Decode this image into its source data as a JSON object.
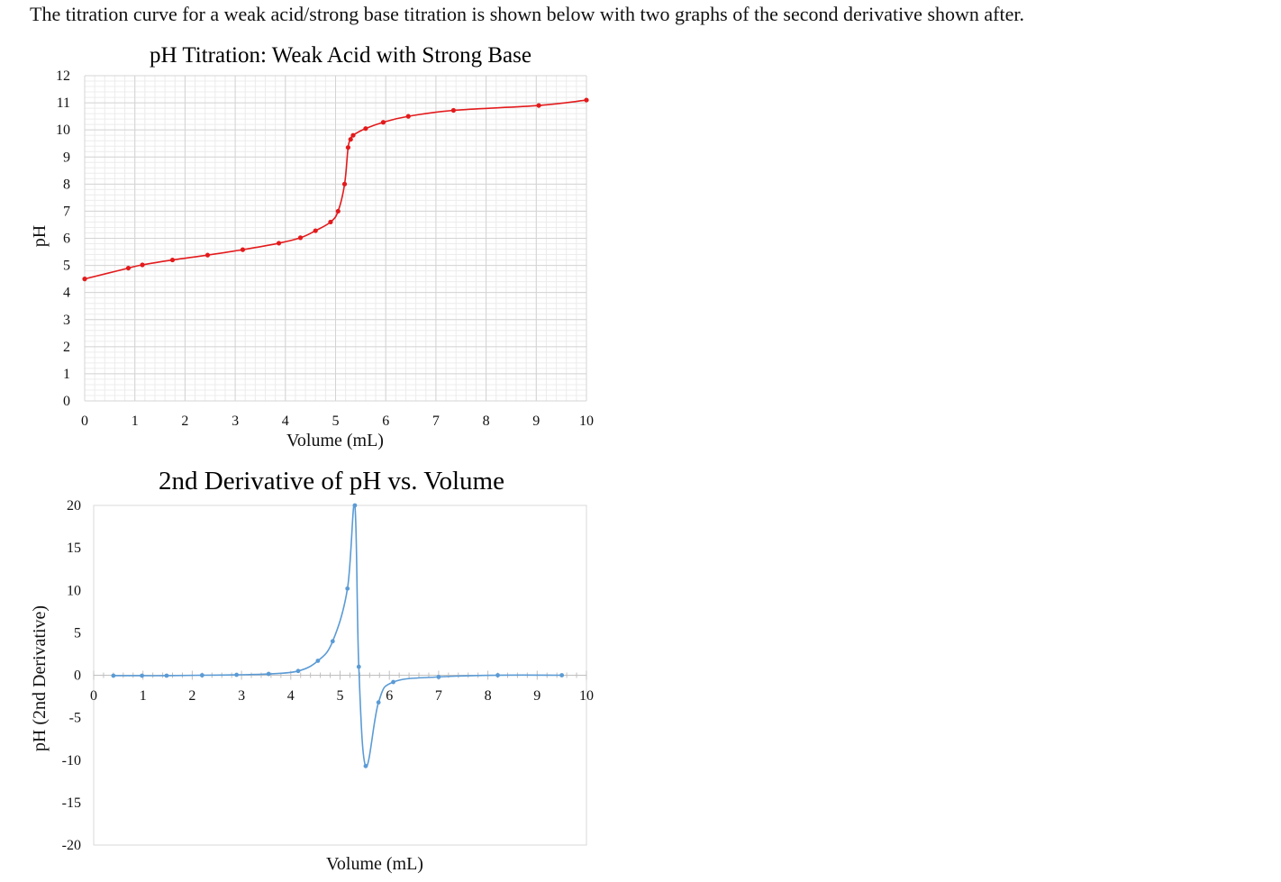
{
  "intro_text": "The titration curve for a weak acid/strong base titration is shown below with two graphs of the second derivative shown after.",
  "chart_data": [
    {
      "type": "line",
      "title": "pH Titration: Weak Acid with Strong Base",
      "xlabel": "Volume (mL)",
      "ylabel": "pH",
      "xlim": [
        0,
        10
      ],
      "ylim": [
        0,
        12
      ],
      "x_ticks": [
        "0",
        "1",
        "2",
        "3",
        "4",
        "5",
        "6",
        "7",
        "8",
        "9",
        "10"
      ],
      "y_ticks": [
        "0",
        "1",
        "2",
        "3",
        "4",
        "5",
        "6",
        "7",
        "8",
        "9",
        "10",
        "11",
        "12"
      ],
      "grid": true,
      "legend": "none",
      "color": "#e31a1c",
      "series": [
        {
          "x": [
            0,
            0.87,
            1.15,
            1.75,
            2.45,
            3.15,
            3.87,
            4.3,
            4.6,
            4.9,
            5.05,
            5.18,
            5.25,
            5.3,
            5.35,
            5.6,
            5.95,
            6.45,
            7.35,
            9.05,
            10
          ],
          "y": [
            4.5,
            4.9,
            5.02,
            5.2,
            5.38,
            5.58,
            5.82,
            6.02,
            6.28,
            6.6,
            7.0,
            8.0,
            9.35,
            9.65,
            9.8,
            10.05,
            10.28,
            10.5,
            10.72,
            10.9,
            11.1
          ]
        }
      ]
    },
    {
      "type": "line",
      "title": "2nd Derivative of pH vs. Volume",
      "xlabel": "Volume (mL)",
      "ylabel": "pH (2nd Derivative)",
      "xlim": [
        0,
        10
      ],
      "ylim": [
        -20,
        20
      ],
      "x_ticks": [
        "0",
        "1",
        "2",
        "3",
        "4",
        "5",
        "6",
        "7",
        "8",
        "9",
        "10"
      ],
      "y_ticks": [
        "-20",
        "-15",
        "-10",
        "-5",
        "0",
        "5",
        "10",
        "15",
        "20"
      ],
      "grid": false,
      "legend": "none",
      "color": "#5b9bd5",
      "series": [
        {
          "x": [
            0.4,
            0.98,
            1.48,
            2.2,
            2.9,
            3.55,
            4.15,
            4.55,
            4.85,
            5.15,
            5.3,
            5.38,
            5.52,
            5.78,
            6.08,
            7.0,
            8.2,
            9.5
          ],
          "y": [
            -0.05,
            -0.05,
            -0.05,
            0.0,
            0.05,
            0.15,
            0.5,
            1.7,
            4.0,
            10.2,
            20.0,
            1.0,
            -10.7,
            -3.2,
            -0.8,
            -0.2,
            0.0,
            0.0
          ]
        }
      ]
    }
  ]
}
